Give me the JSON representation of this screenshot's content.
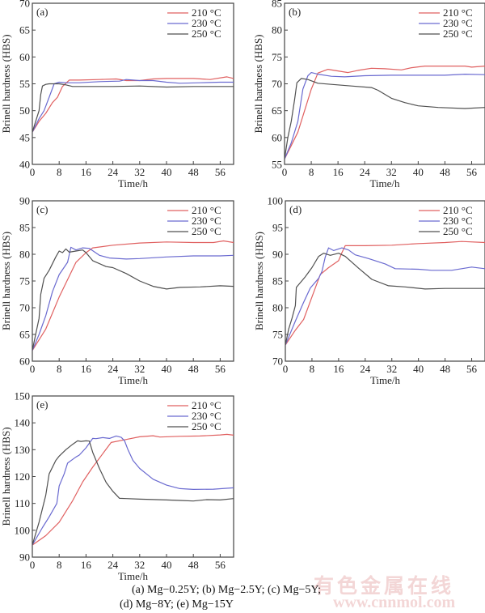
{
  "chart_data": [
    {
      "type": "line",
      "panel": "(a)",
      "xlabel": "Time/h",
      "ylabel": "Brinell hardness (HBS)",
      "xlim": [
        0,
        60
      ],
      "ylim": [
        40,
        70
      ],
      "xticks": [
        0,
        8,
        16,
        24,
        32,
        40,
        48,
        56
      ],
      "yticks": [
        40,
        45,
        50,
        55,
        60,
        65,
        70
      ],
      "legend_position": "top-right",
      "series": [
        {
          "name": "210 °C",
          "color": "#e06060",
          "x": [
            0,
            2,
            4,
            6,
            7.5,
            9,
            11,
            14,
            20,
            25,
            28,
            32,
            36,
            40,
            48,
            53,
            58,
            60
          ],
          "y": [
            46,
            48,
            49.5,
            51.5,
            52.5,
            54.5,
            55.7,
            55.7,
            55.8,
            55.9,
            55.6,
            55.6,
            55.9,
            56.0,
            56.0,
            55.8,
            56.3,
            56.0
          ]
        },
        {
          "name": "230 °C",
          "color": "#6a6ad0",
          "x": [
            0,
            2,
            3.5,
            5,
            6.5,
            8,
            10,
            14,
            20,
            26,
            28,
            32,
            36,
            40,
            44,
            50,
            56,
            60
          ],
          "y": [
            46,
            48.5,
            50,
            52.5,
            55,
            55.3,
            55.2,
            55.2,
            55.4,
            55.5,
            55.8,
            55.6,
            55.6,
            55.3,
            55.1,
            55.2,
            55.3,
            55.3
          ]
        },
        {
          "name": "250 °C",
          "color": "#505050",
          "x": [
            0,
            1,
            2,
            2.5,
            3,
            4,
            5,
            8,
            10,
            12,
            16,
            24,
            32,
            40,
            48,
            56,
            60
          ],
          "y": [
            46,
            48,
            50,
            53,
            54.6,
            54.9,
            55.0,
            55.0,
            54.8,
            54.5,
            54.5,
            54.5,
            54.6,
            54.4,
            54.5,
            54.5,
            54.5
          ]
        }
      ]
    },
    {
      "type": "line",
      "panel": "(b)",
      "xlabel": "Time/h",
      "ylabel": "Brinell hardness (HBS)",
      "xlim": [
        0,
        60
      ],
      "ylim": [
        55,
        85
      ],
      "xticks": [
        0,
        8,
        16,
        24,
        32,
        40,
        48,
        56
      ],
      "yticks": [
        55,
        60,
        65,
        70,
        75,
        80,
        85
      ],
      "legend_position": "top-right",
      "series": [
        {
          "name": "210 °C",
          "color": "#e06060",
          "x": [
            0,
            2,
            4,
            6,
            8,
            10,
            13,
            16,
            19,
            22,
            26,
            30,
            35,
            38,
            42,
            48,
            54,
            56,
            60
          ],
          "y": [
            56,
            58.5,
            61,
            65,
            69,
            72,
            72.7,
            72.4,
            72.1,
            72.5,
            72.9,
            72.8,
            72.6,
            73.0,
            73.3,
            73.3,
            73.3,
            73.1,
            73.3
          ]
        },
        {
          "name": "230 °C",
          "color": "#6a6ad0",
          "x": [
            0,
            2,
            4,
            5.5,
            7,
            8,
            10,
            14,
            18,
            24,
            32,
            40,
            48,
            54,
            60
          ],
          "y": [
            56,
            59,
            63,
            69,
            71.5,
            72.1,
            71.8,
            71.4,
            71.3,
            71.5,
            71.6,
            71.6,
            71.6,
            71.8,
            71.7
          ]
        },
        {
          "name": "250 °C",
          "color": "#505050",
          "x": [
            0,
            1,
            2,
            3,
            3.7,
            5,
            7,
            10,
            14,
            20,
            26,
            28,
            32,
            36,
            40,
            46,
            54,
            60
          ],
          "y": [
            56,
            60,
            63,
            67,
            70.2,
            71.0,
            70.8,
            70.1,
            69.9,
            69.6,
            69.3,
            68.8,
            67.3,
            66.5,
            65.9,
            65.6,
            65.4,
            65.6
          ]
        }
      ]
    },
    {
      "type": "line",
      "panel": "(c)",
      "xlabel": "Time/h",
      "ylabel": "Brinell hardness (HBS)",
      "xlim": [
        0,
        60
      ],
      "ylim": [
        60,
        90
      ],
      "xticks": [
        0,
        8,
        16,
        24,
        32,
        40,
        48,
        56
      ],
      "yticks": [
        60,
        65,
        70,
        75,
        80,
        85,
        90
      ],
      "legend_position": "top-right",
      "series": [
        {
          "name": "210 °C",
          "color": "#e06060",
          "x": [
            0,
            4,
            8,
            13,
            16,
            18,
            24,
            32,
            40,
            48,
            54,
            57,
            60
          ],
          "y": [
            62,
            66,
            72,
            78.5,
            80.3,
            81.2,
            81.7,
            82.1,
            82.3,
            82.2,
            82.2,
            82.5,
            82.2
          ]
        },
        {
          "name": "230 °C",
          "color": "#6a6ad0",
          "x": [
            0,
            2,
            4,
            6,
            8,
            10.5,
            11.5,
            13,
            15,
            17,
            20,
            23,
            28,
            32,
            40,
            48,
            56,
            60
          ],
          "y": [
            62,
            65,
            68.5,
            73,
            76.2,
            78.5,
            81.3,
            80.8,
            81.2,
            81.1,
            79.8,
            79.3,
            79.1,
            79.2,
            79.5,
            79.7,
            79.7,
            79.8
          ]
        },
        {
          "name": "250 °C",
          "color": "#505050",
          "x": [
            0,
            1,
            2,
            2.5,
            3.5,
            5,
            7,
            8,
            9,
            10,
            11,
            13,
            15,
            16,
            18,
            22,
            24,
            28,
            32,
            36,
            40,
            44,
            50,
            56,
            60
          ],
          "y": [
            62,
            65,
            68,
            72.5,
            75.5,
            77,
            79.5,
            80.6,
            80.3,
            81.0,
            80.4,
            80.6,
            80.8,
            80.3,
            78.8,
            77.7,
            77.5,
            76.4,
            75.0,
            74.0,
            73.5,
            73.8,
            73.9,
            74.1,
            74.0
          ]
        }
      ]
    },
    {
      "type": "line",
      "panel": "(d)",
      "xlabel": "Time/h",
      "ylabel": "Brinell hardness (HBS)",
      "xlim": [
        0,
        60
      ],
      "ylim": [
        70,
        100
      ],
      "xticks": [
        0,
        8,
        16,
        24,
        32,
        40,
        48,
        56
      ],
      "yticks": [
        70,
        75,
        80,
        85,
        90,
        95,
        100
      ],
      "legend_position": "top-right",
      "series": [
        {
          "name": "210 °C",
          "color": "#e06060",
          "x": [
            0,
            3,
            5.5,
            8,
            10.5,
            13,
            16,
            17,
            18,
            24,
            32,
            40,
            48,
            53,
            60
          ],
          "y": [
            73,
            75.8,
            77.8,
            82,
            86.2,
            87.5,
            88.8,
            90.3,
            91.6,
            91.6,
            91.7,
            92.0,
            92.2,
            92.4,
            92.2
          ]
        },
        {
          "name": "230 °C",
          "color": "#6a6ad0",
          "x": [
            0,
            3,
            5.5,
            7.5,
            10,
            11,
            12,
            13,
            14.5,
            17,
            19,
            21,
            25,
            30,
            33,
            40,
            44,
            50,
            56,
            60
          ],
          "y": [
            73,
            77.5,
            81,
            83.7,
            85.5,
            86.8,
            89.5,
            91.2,
            90.7,
            91.2,
            90.8,
            89.9,
            89.2,
            88.2,
            87.3,
            87.2,
            87.0,
            87.0,
            87.6,
            87.3
          ]
        },
        {
          "name": "250 °C",
          "color": "#505050",
          "x": [
            0,
            1,
            2,
            3,
            3.3,
            6,
            8,
            10,
            11.5,
            13.5,
            16,
            18,
            22,
            26,
            31,
            36,
            42,
            48,
            56,
            60
          ],
          "y": [
            73,
            76,
            78,
            80.4,
            83.8,
            85.8,
            87.5,
            89.6,
            90.2,
            89.8,
            90.2,
            89.6,
            87.4,
            85.3,
            84.1,
            83.9,
            83.5,
            83.6,
            83.6,
            83.6
          ]
        }
      ]
    },
    {
      "type": "line",
      "panel": "(e)",
      "xlabel": "Time/h",
      "ylabel": "Brinell hardness (HBS)",
      "xlim": [
        0,
        60
      ],
      "ylim": [
        90,
        150
      ],
      "xticks": [
        0,
        8,
        16,
        24,
        32,
        40,
        48,
        56
      ],
      "yticks": [
        90,
        100,
        110,
        120,
        130,
        140,
        150
      ],
      "legend_position": "top-right",
      "series": [
        {
          "name": "210 °C",
          "color": "#e06060",
          "x": [
            0,
            4,
            8,
            12,
            15,
            18,
            21,
            23.5,
            28,
            32,
            36,
            38,
            44,
            50,
            56,
            58,
            60
          ],
          "y": [
            94.5,
            98,
            103,
            111,
            118,
            123.5,
            128.5,
            132.7,
            133.8,
            134.8,
            135.2,
            134.7,
            135.0,
            135.1,
            135.5,
            135.7,
            135.4
          ]
        },
        {
          "name": "230 °C",
          "color": "#6a6ad0",
          "x": [
            0,
            3,
            5,
            7.3,
            8,
            9.5,
            10.5,
            13,
            14,
            16,
            18,
            19,
            21,
            23,
            25,
            26.5,
            27.5,
            28.5,
            30,
            32,
            36,
            40,
            44,
            48,
            54,
            60
          ],
          "y": [
            94.5,
            101,
            105,
            110,
            116.5,
            121,
            125,
            127.3,
            128,
            130.7,
            134.2,
            134.1,
            134.5,
            134.2,
            135.1,
            134.6,
            133.3,
            130,
            126,
            123,
            119,
            116.8,
            115.5,
            115.2,
            115.3,
            115.8
          ]
        },
        {
          "name": "250 °C",
          "color": "#505050",
          "x": [
            0,
            2,
            4,
            5,
            7,
            8,
            10,
            12,
            13.5,
            14.5,
            16,
            17,
            18,
            20,
            22,
            24,
            26,
            28,
            32,
            40,
            44,
            48,
            52,
            56,
            60
          ],
          "y": [
            94.5,
            103,
            113,
            121,
            126,
            127.6,
            130,
            132,
            133.3,
            133.1,
            133.3,
            133.2,
            129,
            123,
            117.8,
            114.5,
            111.9,
            111.8,
            111.6,
            111.3,
            111.1,
            110.9,
            111.4,
            111.3,
            111.8
          ]
        }
      ]
    }
  ],
  "caption": {
    "line1": "(a) Mg−0.25Y; (b) Mg−2.5Y; (c) Mg−5Y;",
    "line2": "(d) Mg−8Y; (e) Mg−15Y"
  },
  "watermark": {
    "text_cn": "有色金属在线",
    "url": "www.cnnmol.com"
  }
}
